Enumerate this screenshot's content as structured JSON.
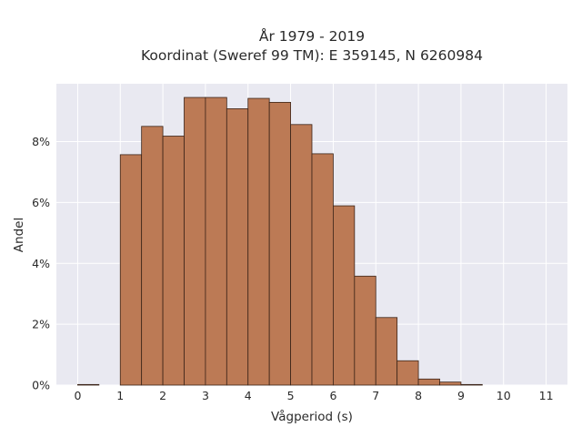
{
  "chart_data": {
    "type": "bar",
    "title": "År 1979 - 2019",
    "subtitle": "Koordinat (Sweref 99 TM): E 359145, N 6260984",
    "xlabel": "Vågperiod (s)",
    "ylabel": "Andel",
    "xlim": [
      -0.5,
      11.5
    ],
    "ylim": [
      0,
      9.9
    ],
    "x_ticks": [
      0,
      1,
      2,
      3,
      4,
      5,
      6,
      7,
      8,
      9,
      10,
      11
    ],
    "y_ticks": [
      0,
      2,
      4,
      6,
      8
    ],
    "y_tick_labels": [
      "0%",
      "2%",
      "4%",
      "6%",
      "8%"
    ],
    "bin_width": 0.5,
    "bins": [
      {
        "x0": 0.0,
        "x1": 0.5,
        "value": 0.02
      },
      {
        "x0": 1.0,
        "x1": 1.5,
        "value": 7.57
      },
      {
        "x0": 1.5,
        "x1": 2.0,
        "value": 8.5
      },
      {
        "x0": 2.0,
        "x1": 2.5,
        "value": 8.18
      },
      {
        "x0": 2.5,
        "x1": 3.0,
        "value": 9.45
      },
      {
        "x0": 3.0,
        "x1": 3.5,
        "value": 9.45
      },
      {
        "x0": 3.5,
        "x1": 4.0,
        "value": 9.08
      },
      {
        "x0": 4.0,
        "x1": 4.5,
        "value": 9.42
      },
      {
        "x0": 4.5,
        "x1": 5.0,
        "value": 9.29
      },
      {
        "x0": 5.0,
        "x1": 5.5,
        "value": 8.56
      },
      {
        "x0": 5.5,
        "x1": 6.0,
        "value": 7.6
      },
      {
        "x0": 6.0,
        "x1": 6.5,
        "value": 5.89
      },
      {
        "x0": 6.5,
        "x1": 7.0,
        "value": 3.58
      },
      {
        "x0": 7.0,
        "x1": 7.5,
        "value": 2.22
      },
      {
        "x0": 7.5,
        "x1": 8.0,
        "value": 0.8
      },
      {
        "x0": 8.0,
        "x1": 8.5,
        "value": 0.2
      },
      {
        "x0": 8.5,
        "x1": 9.0,
        "value": 0.1
      },
      {
        "x0": 9.0,
        "x1": 9.5,
        "value": 0.02
      }
    ],
    "grid": true,
    "legend": "none",
    "colors": {
      "bar_fill": "#bc7a55",
      "bar_edge": "#3b2418",
      "plot_background": "#e9e9f1",
      "grid": "#ffffff",
      "text": "#2a2a2a"
    }
  }
}
